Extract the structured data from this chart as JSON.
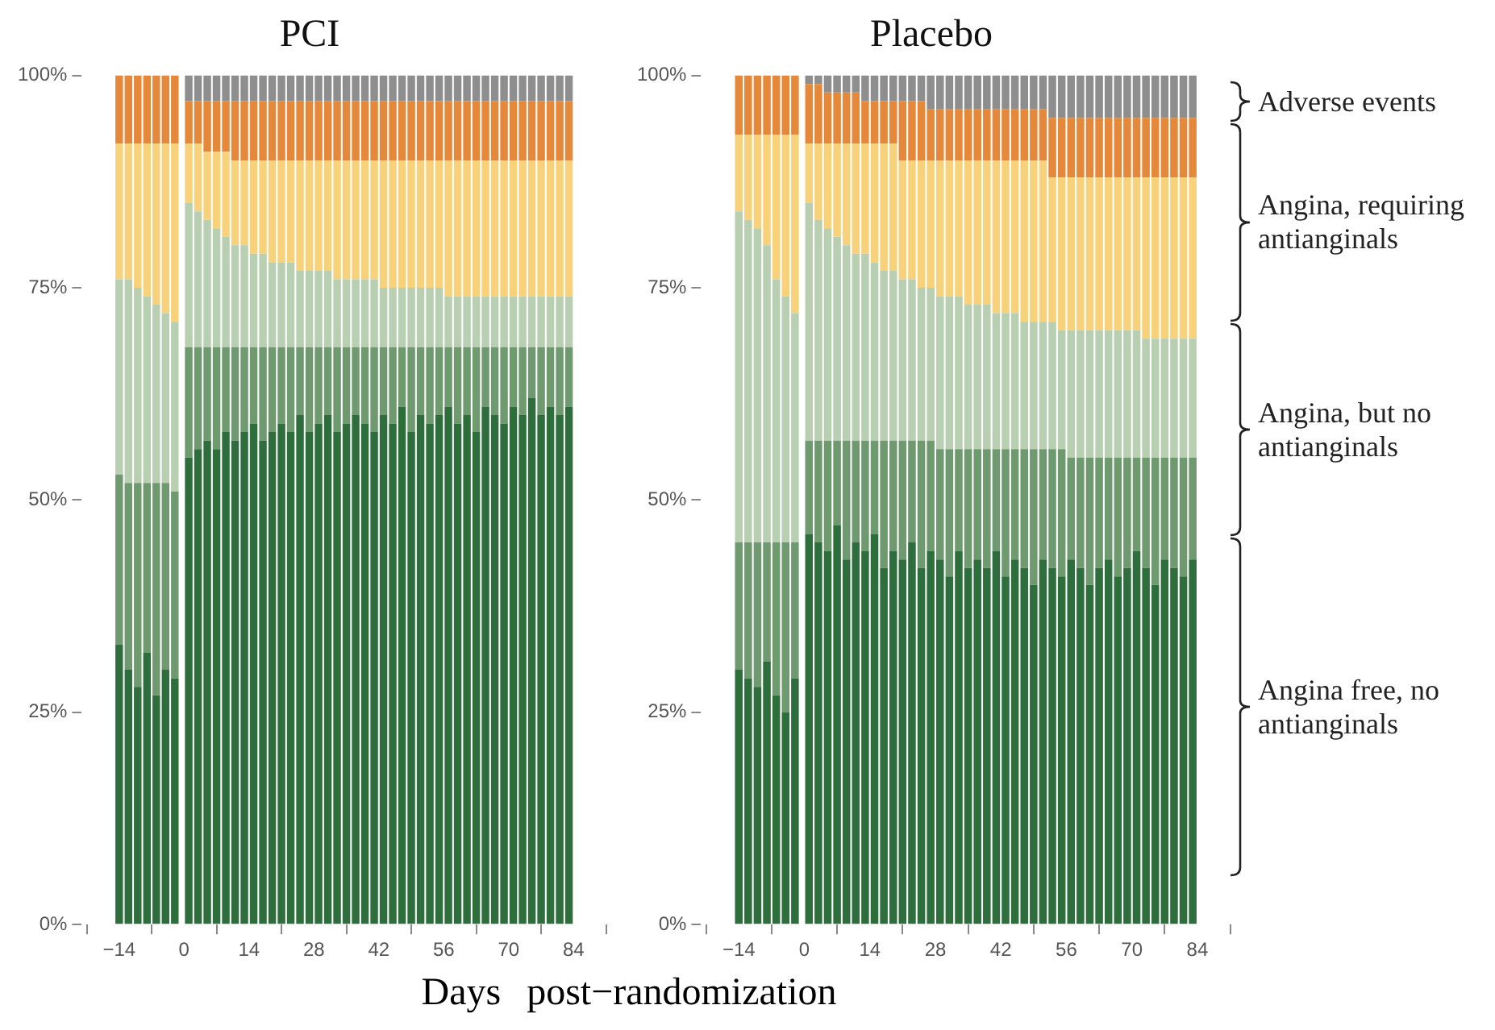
{
  "chart_data": [
    {
      "type": "bar",
      "title": "PCI",
      "xlabel": "Days post−randomization",
      "stacked": true,
      "grid": false,
      "legend": false,
      "x": [
        -14,
        -12,
        -10,
        -8,
        -6,
        -4,
        -2,
        1,
        3,
        5,
        7,
        9,
        11,
        13,
        15,
        17,
        19,
        21,
        23,
        25,
        27,
        29,
        31,
        33,
        35,
        37,
        39,
        41,
        43,
        45,
        47,
        49,
        51,
        53,
        55,
        57,
        59,
        61,
        63,
        65,
        67,
        69,
        71,
        73,
        75,
        77,
        79,
        81,
        83
      ],
      "xlim": [
        -15,
        84
      ],
      "xticks": [
        {
          "value": -14,
          "label": "−14"
        },
        0,
        14,
        28,
        42,
        56,
        70,
        84
      ],
      "ylim": [
        0,
        100
      ],
      "yticks": [
        {
          "value": 0,
          "label": "0%"
        },
        {
          "value": 25,
          "label": "25%"
        },
        {
          "value": 50,
          "label": "50%"
        },
        {
          "value": 75,
          "label": "75%"
        },
        {
          "value": 100,
          "label": "100%"
        }
      ],
      "series": [
        {
          "color": "#2e6e3c",
          "values": [
            33,
            30,
            28,
            32,
            27,
            30,
            29,
            55,
            56,
            57,
            56,
            58,
            57,
            58,
            59,
            57,
            58,
            59,
            58,
            60,
            58,
            59,
            60,
            58,
            59,
            60,
            59,
            58,
            60,
            59,
            61,
            58,
            60,
            59,
            60,
            61,
            59,
            60,
            58,
            61,
            60,
            59,
            61,
            60,
            62,
            60,
            61,
            60,
            61
          ]
        },
        {
          "color": "#6f9a70",
          "values": [
            20,
            22,
            24,
            20,
            25,
            22,
            22,
            13,
            12,
            11,
            12,
            10,
            11,
            10,
            9,
            11,
            10,
            9,
            10,
            8,
            10,
            9,
            8,
            10,
            9,
            8,
            9,
            10,
            8,
            9,
            7,
            10,
            8,
            9,
            8,
            7,
            9,
            8,
            10,
            7,
            8,
            9,
            7,
            8,
            6,
            8,
            7,
            8,
            7
          ]
        },
        {
          "color": "#b9cfb2",
          "values": [
            23,
            24,
            23,
            22,
            21,
            20,
            20,
            17,
            16,
            15,
            14,
            13,
            12,
            12,
            11,
            11,
            10,
            10,
            10,
            9,
            9,
            9,
            9,
            8,
            8,
            8,
            8,
            8,
            7,
            7,
            7,
            7,
            7,
            7,
            7,
            6,
            6,
            6,
            6,
            6,
            6,
            6,
            6,
            6,
            6,
            6,
            6,
            6,
            6
          ]
        },
        {
          "color": "#f8d27a",
          "values": [
            16,
            16,
            17,
            18,
            19,
            20,
            21,
            7,
            8,
            8,
            9,
            10,
            10,
            10,
            11,
            11,
            12,
            12,
            12,
            13,
            13,
            13,
            13,
            14,
            14,
            14,
            14,
            14,
            15,
            15,
            15,
            15,
            15,
            15,
            15,
            16,
            16,
            16,
            16,
            16,
            16,
            16,
            16,
            16,
            16,
            16,
            16,
            16,
            16
          ]
        },
        {
          "color": "#e6883a",
          "values": [
            8,
            8,
            8,
            8,
            8,
            8,
            8,
            5,
            5,
            6,
            6,
            6,
            7,
            7,
            7,
            7,
            7,
            7,
            7,
            7,
            7,
            7,
            7,
            7,
            7,
            7,
            7,
            7,
            7,
            7,
            7,
            7,
            7,
            7,
            7,
            7,
            7,
            7,
            7,
            7,
            7,
            7,
            7,
            7,
            7,
            7,
            7,
            7,
            7
          ]
        },
        {
          "color": "#8e8e8e",
          "values": [
            0,
            0,
            0,
            0,
            0,
            0,
            0,
            3,
            3,
            3,
            3,
            3,
            3,
            3,
            3,
            3,
            3,
            3,
            3,
            3,
            3,
            3,
            3,
            3,
            3,
            3,
            3,
            3,
            3,
            3,
            3,
            3,
            3,
            3,
            3,
            3,
            3,
            3,
            3,
            3,
            3,
            3,
            3,
            3,
            3,
            3,
            3,
            3,
            3
          ]
        }
      ]
    },
    {
      "type": "bar",
      "title": "Placebo",
      "stacked": true,
      "grid": false,
      "legend": false,
      "x": [
        -14,
        -12,
        -10,
        -8,
        -6,
        -4,
        -2,
        1,
        3,
        5,
        7,
        9,
        11,
        13,
        15,
        17,
        19,
        21,
        23,
        25,
        27,
        29,
        31,
        33,
        35,
        37,
        39,
        41,
        43,
        45,
        47,
        49,
        51,
        53,
        55,
        57,
        59,
        61,
        63,
        65,
        67,
        69,
        71,
        73,
        75,
        77,
        79,
        81,
        83
      ],
      "xlim": [
        -15,
        84
      ],
      "xticks": [
        {
          "value": -14,
          "label": "−14"
        },
        0,
        14,
        28,
        42,
        56,
        70,
        84
      ],
      "ylim": [
        0,
        100
      ],
      "yticks": [
        {
          "value": 0,
          "label": "0%"
        },
        {
          "value": 25,
          "label": "25%"
        },
        {
          "value": 50,
          "label": "50%"
        },
        {
          "value": 75,
          "label": "75%"
        },
        {
          "value": 100,
          "label": "100%"
        }
      ],
      "annotations": [
        "Adverse events",
        "Angina, requiring antianginals",
        "Angina, but no antianginals",
        "Angina free, no antianginals"
      ],
      "series": [
        {
          "color": "#2e6e3c",
          "values": [
            30,
            29,
            28,
            31,
            27,
            25,
            29,
            46,
            45,
            44,
            47,
            43,
            45,
            44,
            46,
            42,
            44,
            43,
            45,
            42,
            44,
            43,
            41,
            44,
            42,
            43,
            42,
            44,
            41,
            43,
            42,
            40,
            43,
            42,
            41,
            43,
            42,
            40,
            42,
            43,
            41,
            42,
            44,
            42,
            40,
            43,
            42,
            41,
            43
          ]
        },
        {
          "color": "#6f9a70",
          "values": [
            15,
            16,
            17,
            14,
            18,
            20,
            16,
            11,
            12,
            13,
            10,
            14,
            12,
            13,
            11,
            15,
            13,
            14,
            12,
            15,
            13,
            13,
            15,
            12,
            14,
            13,
            14,
            12,
            15,
            13,
            14,
            16,
            13,
            14,
            15,
            12,
            13,
            15,
            13,
            12,
            14,
            13,
            11,
            13,
            15,
            12,
            13,
            14,
            12
          ]
        },
        {
          "color": "#b9cfb2",
          "values": [
            39,
            38,
            37,
            35,
            31,
            29,
            27,
            28,
            26,
            25,
            24,
            23,
            22,
            22,
            21,
            20,
            20,
            19,
            19,
            18,
            18,
            18,
            18,
            18,
            17,
            17,
            17,
            16,
            16,
            16,
            15,
            15,
            15,
            15,
            14,
            15,
            15,
            15,
            15,
            15,
            15,
            15,
            15,
            14,
            14,
            14,
            14,
            14,
            14
          ]
        },
        {
          "color": "#f8d27a",
          "values": [
            9,
            10,
            11,
            13,
            17,
            19,
            21,
            7,
            9,
            10,
            11,
            12,
            13,
            13,
            14,
            15,
            15,
            14,
            14,
            15,
            15,
            16,
            16,
            16,
            17,
            17,
            17,
            18,
            18,
            18,
            19,
            19,
            19,
            17,
            18,
            18,
            18,
            18,
            18,
            18,
            18,
            18,
            18,
            19,
            19,
            19,
            19,
            19,
            19
          ]
        },
        {
          "color": "#e6883a",
          "values": [
            7,
            7,
            7,
            7,
            7,
            7,
            7,
            7,
            7,
            6,
            6,
            6,
            6,
            5,
            5,
            5,
            5,
            7,
            7,
            7,
            6,
            6,
            6,
            6,
            6,
            6,
            6,
            6,
            6,
            6,
            6,
            6,
            6,
            7,
            7,
            7,
            7,
            7,
            7,
            7,
            7,
            7,
            7,
            7,
            7,
            7,
            7,
            7,
            7
          ]
        },
        {
          "color": "#8e8e8e",
          "values": [
            0,
            0,
            0,
            0,
            0,
            0,
            0,
            1,
            1,
            2,
            2,
            2,
            2,
            3,
            3,
            3,
            3,
            3,
            3,
            3,
            4,
            4,
            4,
            4,
            4,
            4,
            4,
            4,
            4,
            4,
            4,
            4,
            4,
            5,
            5,
            5,
            5,
            5,
            5,
            5,
            5,
            5,
            5,
            5,
            5,
            5,
            5,
            5,
            5
          ]
        }
      ]
    }
  ]
}
